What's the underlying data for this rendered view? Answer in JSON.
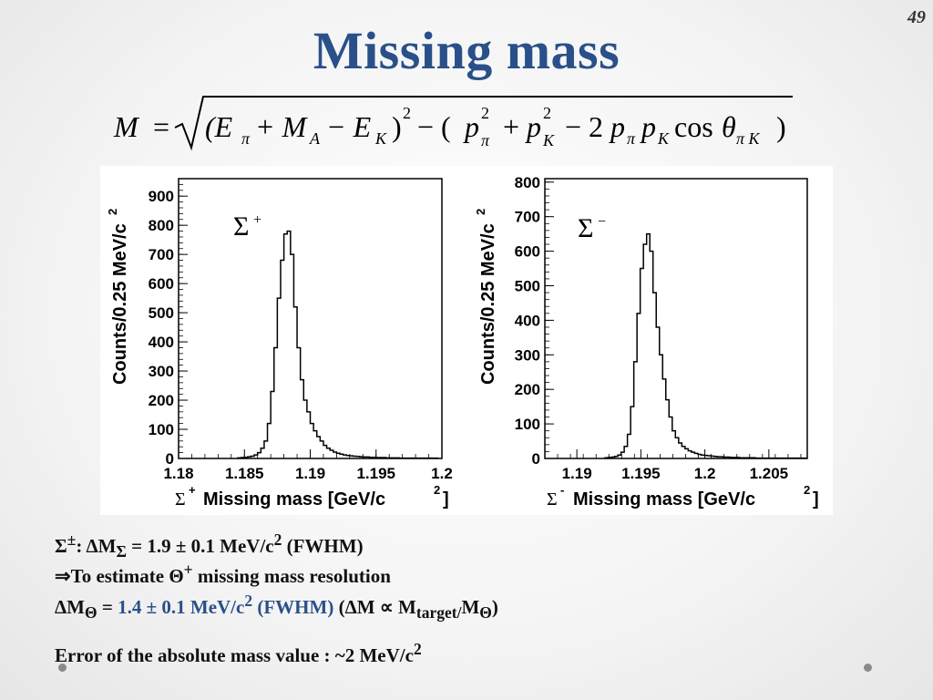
{
  "page_number": "49",
  "title": "Missing mass",
  "formula": {
    "lhs": "M",
    "eq": "=",
    "open": "(E",
    "sub_pi": "π",
    "plus_M": "+ M",
    "sub_A": "A",
    "minus_E": "− E",
    "sub_K": "K",
    "close": ")",
    "sup_2": "2",
    "minus_open": "− (",
    "p": "p",
    "plus": "+",
    "minus_2": "− 2",
    "cos": "cos",
    "theta": "θ",
    "sub_piK": "π K",
    "end": ")"
  },
  "colors": {
    "title": "#2a5089",
    "highlight": "#2a5089"
  },
  "plots": [
    {
      "sigma_label": "Σ",
      "sigma_sup": "+",
      "ylabel": "Counts/0.25 MeV/c",
      "ylabel_sup": "2",
      "xlabel_sym": "Σ",
      "xlabel_sup": "+",
      "xlabel_text": "Missing mass [GeV/c",
      "xlabel_sup2": "2",
      "xlabel_end": "]",
      "xticks": [
        "1.18",
        "1.185",
        "1.19",
        "1.195",
        "1.2"
      ],
      "yticks": [
        "0",
        "100",
        "200",
        "300",
        "400",
        "500",
        "600",
        "700",
        "800",
        "900"
      ]
    },
    {
      "sigma_label": "Σ",
      "sigma_sup": "−",
      "ylabel": "Counts/0.25 MeV/c",
      "ylabel_sup": "2",
      "xlabel_sym": "Σ",
      "xlabel_sup": "-",
      "xlabel_text": "Missing mass [GeV/c",
      "xlabel_sup2": "2",
      "xlabel_end": "]",
      "xticks": [
        "1.19",
        "1.195",
        "1.2",
        "1.205"
      ],
      "yticks": [
        "0",
        "100",
        "200",
        "300",
        "400",
        "500",
        "600",
        "700",
        "800"
      ]
    }
  ],
  "chart_data": [
    {
      "type": "bar",
      "xlabel": "Σ+ Missing mass [GeV/c2]",
      "ylabel": "Counts/0.25 MeV/c2",
      "xlim": [
        1.18,
        1.2
      ],
      "ylim": [
        0,
        960
      ],
      "bin_width": 0.00025,
      "x_start": 1.1845,
      "values": [
        2,
        3,
        4,
        6,
        8,
        12,
        20,
        35,
        60,
        120,
        230,
        380,
        550,
        680,
        770,
        780,
        700,
        520,
        380,
        270,
        200,
        160,
        120,
        95,
        75,
        60,
        45,
        35,
        28,
        22,
        18,
        15,
        12,
        10,
        9,
        8,
        7,
        6,
        5,
        5,
        4,
        4,
        3,
        3,
        3,
        2,
        2,
        2,
        2,
        1,
        1,
        1,
        1,
        1,
        1,
        1,
        1,
        1,
        1,
        1,
        1,
        1
      ]
    },
    {
      "type": "bar",
      "xlabel": "Σ- Missing mass [GeV/c2]",
      "ylabel": "Counts/0.25 MeV/c2",
      "xlim": [
        1.1875,
        1.208
      ],
      "ylim": [
        0,
        810
      ],
      "bin_width": 0.00025,
      "x_start": 1.1922,
      "values": [
        2,
        3,
        4,
        6,
        10,
        18,
        35,
        70,
        150,
        280,
        420,
        550,
        620,
        650,
        600,
        480,
        380,
        300,
        230,
        170,
        120,
        80,
        60,
        45,
        35,
        28,
        22,
        18,
        15,
        12,
        10,
        9,
        8,
        7,
        6,
        5,
        5,
        4,
        4,
        3,
        3,
        3,
        2,
        2,
        2,
        2,
        2,
        1,
        1,
        1,
        1,
        1,
        1,
        1,
        1,
        1,
        1,
        1,
        1,
        1,
        1,
        1,
        1
      ]
    }
  ],
  "lines": [
    {
      "sym": "Σ",
      "sup": "±",
      "colon": ":",
      "delta": "ΔM",
      "sub": "Σ",
      "value": "= 1.9 ± 0.1 MeV/c",
      "sup2": "2",
      "tail": "(FWHM)"
    },
    {
      "arrow": "⇒",
      "text1": "To estimate",
      "theta": "Θ",
      "sup": "+",
      "text2": "missing mass resolution"
    },
    {
      "delta": "ΔM",
      "sub": "Θ",
      "eq": "=",
      "value": "1.4 ± 0.1 MeV/c",
      "sup2": "2",
      "fwhm": "(FWHM)",
      "paren_open": "(ΔM ∝ M",
      "sub_target": "target/",
      "m": "M",
      "sub_theta": "Θ",
      "paren_close": ")"
    },
    {
      "text": "Error of the absolute mass value : ~2 MeV/c",
      "sup": "2"
    }
  ]
}
